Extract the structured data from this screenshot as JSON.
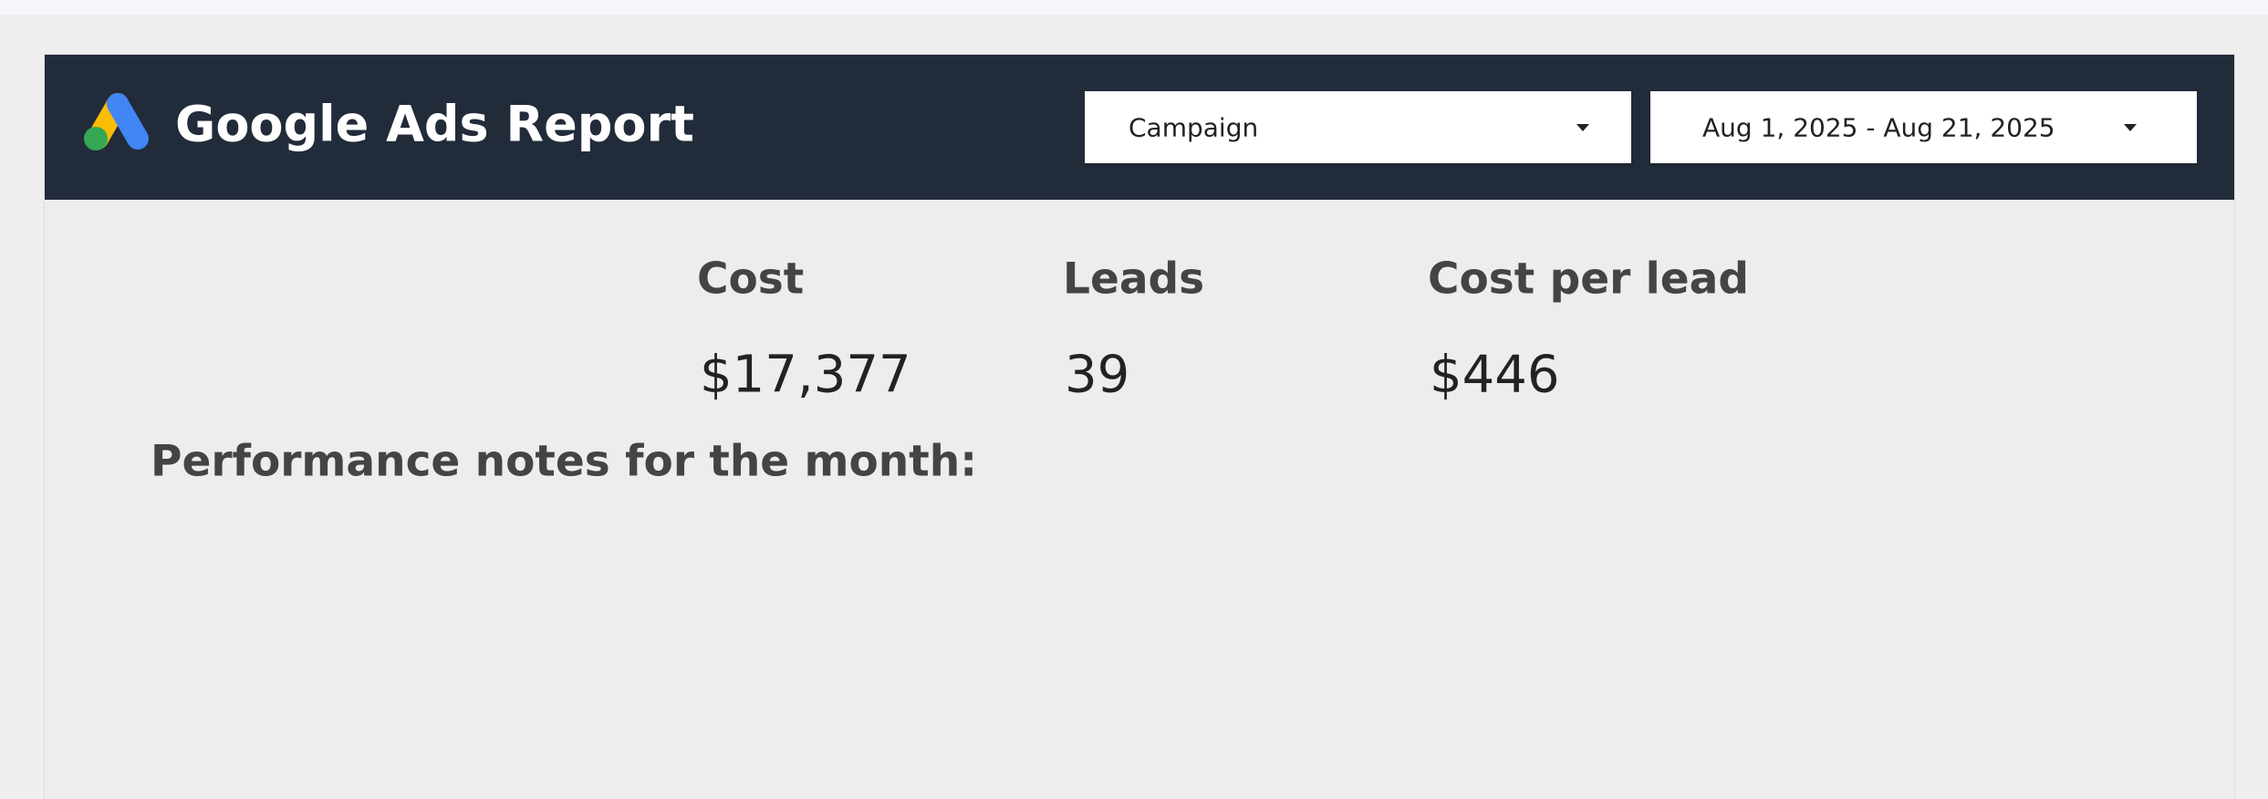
{
  "header": {
    "title": "Google Ads Report"
  },
  "filters": [
    {
      "label": "Campaign"
    },
    {
      "label": "Aug 1, 2025 - Aug 21, 2025"
    }
  ],
  "kpis": [
    {
      "label": "Cost",
      "value": "$17,377"
    },
    {
      "label": "Leads",
      "value": "39"
    },
    {
      "label": "Cost per lead",
      "value": "$446"
    }
  ],
  "notes": {
    "title": "Performance notes for the month:"
  }
}
